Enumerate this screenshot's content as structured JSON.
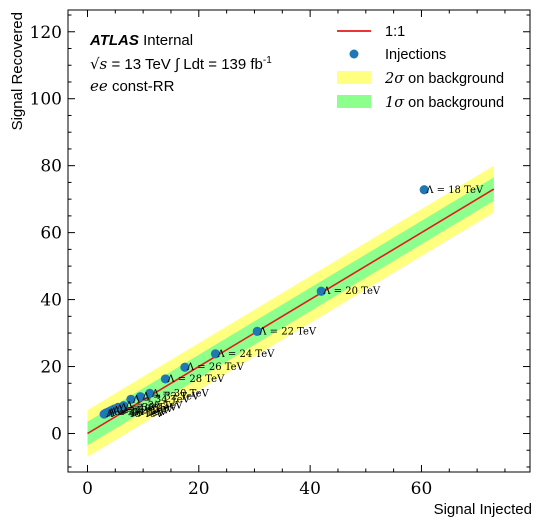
{
  "chart_data": {
    "type": "scatter",
    "title": "",
    "xlabel": "Signal Injected",
    "ylabel": "Signal Recovered",
    "xlim": [
      -3.5,
      79.5
    ],
    "ylim": [
      -11.5,
      126.5
    ],
    "xticks": [
      0,
      20,
      40,
      60
    ],
    "yticks": [
      0,
      20,
      40,
      60,
      80,
      100,
      120
    ],
    "grid": false,
    "legend_position": "top-right",
    "info": {
      "experiment": "ATLAS",
      "status": "Internal",
      "energy_symbol": "√s",
      "energy_value": "= 13 TeV",
      "lumi_label": "∫ Ldt = 139 fb",
      "lumi_exp": "-1",
      "channel_math": "ee",
      "channel_text": "const-RR"
    },
    "legend": {
      "line": "1:1",
      "points": "Injections",
      "band2_sigma": "2σ",
      "band2_text": "on background",
      "band1_sigma": "1σ",
      "band1_text": "on background"
    },
    "colors": {
      "line": "#e41a1c",
      "points": "#1f77b4",
      "band2": "#ffff80",
      "band1": "#8cff8c"
    },
    "reference_line": {
      "x": [
        0,
        73
      ],
      "y": [
        0,
        73
      ]
    },
    "band1_halfwidth": 3.5,
    "band2_halfwidth": 7.0,
    "injections": [
      {
        "x": 60.5,
        "y": 72.8,
        "label": "Λ = 18 TeV"
      },
      {
        "x": 42.0,
        "y": 42.5,
        "label": "Λ = 20 TeV"
      },
      {
        "x": 30.5,
        "y": 30.5,
        "label": "Λ = 22 TeV"
      },
      {
        "x": 23.0,
        "y": 23.8,
        "label": "Λ = 24 TeV"
      },
      {
        "x": 17.5,
        "y": 19.8,
        "label": "Λ = 26 TeV"
      },
      {
        "x": 14.0,
        "y": 16.3,
        "label": "Λ = 28 TeV"
      },
      {
        "x": 11.2,
        "y": 12.0,
        "label": "Λ = 30 TeV"
      },
      {
        "x": 9.5,
        "y": 11.0,
        "label": "Λ = 32 TeV"
      },
      {
        "x": 7.8,
        "y": 10.2,
        "label": "Λ = 34 TeV"
      },
      {
        "x": 6.5,
        "y": 8.3,
        "label": "Λ = 36 TeV"
      },
      {
        "x": 5.5,
        "y": 7.8,
        "label": "Λ = 38 TeV"
      },
      {
        "x": 4.8,
        "y": 7.3,
        "label": "Λ = 40 TeV"
      },
      {
        "x": 4.2,
        "y": 6.8,
        "label": "Λ = 42 TeV"
      },
      {
        "x": 3.7,
        "y": 6.4,
        "label": "Λ = 44 TeV"
      },
      {
        "x": 3.3,
        "y": 6.1,
        "label": "Λ = 46 TeV"
      },
      {
        "x": 3.0,
        "y": 5.8,
        "label": "Λ = 48 TeV"
      }
    ]
  }
}
